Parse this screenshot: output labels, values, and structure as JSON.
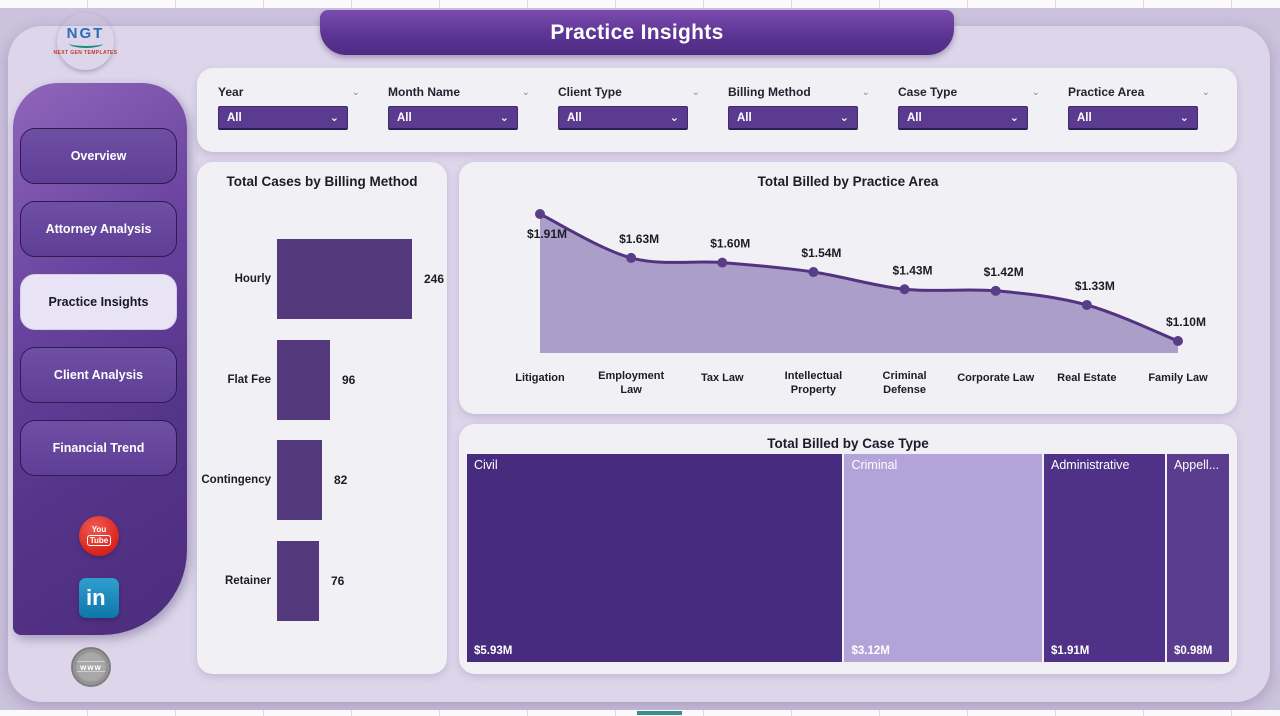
{
  "banner": {
    "title": "Practice Insights"
  },
  "logo": {
    "text": "NGT",
    "subtext": "NEXT GEN TEMPLATES"
  },
  "sidebar": {
    "items": [
      {
        "label": "Overview",
        "active": false
      },
      {
        "label": "Attorney Analysis",
        "active": false
      },
      {
        "label": "Practice Insights",
        "active": true
      },
      {
        "label": "Client Analysis",
        "active": false
      },
      {
        "label": "Financial Trend",
        "active": false
      }
    ],
    "social": {
      "youtube": {
        "line1": "You",
        "line2": "Tube"
      },
      "linkedin": {
        "text": "in"
      },
      "globe": {
        "text": "www"
      }
    }
  },
  "filters": [
    {
      "label": "Year",
      "value": "All"
    },
    {
      "label": "Month Name",
      "value": "All"
    },
    {
      "label": "Client Type",
      "value": "All"
    },
    {
      "label": "Billing Method",
      "value": "All"
    },
    {
      "label": "Case Type",
      "value": "All"
    },
    {
      "label": "Practice Area",
      "value": "All"
    }
  ],
  "colors": {
    "accent_purple": "#5b3b90",
    "bar_fill": "#55397d",
    "line_stroke": "#533380",
    "marker_fill": "#5a3d87",
    "area_fill": "#ab9ec9",
    "teal_accent": "#3e8e8a",
    "tree_tiles": [
      "#472b7e",
      "#b4a3d8",
      "#4f3288",
      "#5a3d8c"
    ]
  },
  "chart_data": [
    {
      "type": "bar",
      "orientation": "horizontal",
      "title": "Total Cases by Billing Method",
      "categories": [
        "Hourly",
        "Flat Fee",
        "Contingency",
        "Retainer"
      ],
      "values": [
        246,
        96,
        82,
        76
      ],
      "xlim": [
        0,
        260
      ],
      "grid": false,
      "data_labels": true
    },
    {
      "type": "area",
      "title": "Total Billed by Practice Area",
      "categories": [
        "Litigation",
        "Employment Law",
        "Tax Law",
        "Intellectual Property",
        "Criminal Defense",
        "Corporate Law",
        "Real Estate",
        "Family Law"
      ],
      "x_labels": [
        "Litigation",
        "Employment\nLaw",
        "Tax Law",
        "Intellectual\nProperty",
        "Criminal\nDefense",
        "Corporate Law",
        "Real Estate",
        "Family Law"
      ],
      "values_millions": [
        1.91,
        1.63,
        1.6,
        1.54,
        1.43,
        1.42,
        1.33,
        1.1
      ],
      "data_labels": [
        "$1.91M",
        "$1.63M",
        "$1.60M",
        "$1.54M",
        "$1.43M",
        "$1.42M",
        "$1.33M",
        "$1.10M"
      ],
      "ylim_millions": [
        1.0,
        2.0
      ],
      "grid": false,
      "legend": "none"
    },
    {
      "type": "treemap",
      "title": "Total Billed by Case Type",
      "categories": [
        "Civil",
        "Criminal",
        "Administrative",
        "Appellate"
      ],
      "display_names": [
        "Civil",
        "Criminal",
        "Administrative",
        "Appell..."
      ],
      "values_millions": [
        5.93,
        3.12,
        1.91,
        0.98
      ],
      "data_labels": [
        "$5.93M",
        "$3.12M",
        "$1.91M",
        "$0.98M"
      ]
    }
  ]
}
